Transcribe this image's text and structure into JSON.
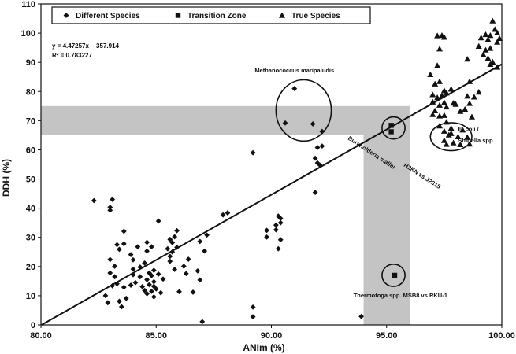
{
  "chart_data": {
    "type": "scatter",
    "xlabel": "ANIm (%)",
    "ylabel": "DDH (%)",
    "xlim": [
      80,
      100
    ],
    "ylim": [
      0,
      110
    ],
    "x_ticks": [
      "80.00",
      "85.00",
      "90.00",
      "95.00",
      "100.00"
    ],
    "y_ticks": [
      "0",
      "10",
      "20",
      "30",
      "40",
      "50",
      "60",
      "70",
      "80",
      "90",
      "100",
      "110"
    ],
    "legend_placement": "top",
    "equation": "y = 4.47257x − 357.914",
    "r_squared": "R² = 0.783227",
    "regression": {
      "slope": 4.47257,
      "intercept": -357.914
    },
    "shaded_bands": {
      "horizontal_ddh": [
        65,
        75
      ],
      "vertical_anim": [
        94,
        96
      ]
    },
    "annotations": [
      {
        "text": "Methanococcus maripaludis",
        "x": 91.0,
        "y": 86.5
      },
      {
        "text": "E. coli /",
        "x": 98.1,
        "y": 66.5
      },
      {
        "text": "Shigella spp.",
        "x": 98.1,
        "y": 62.5
      },
      {
        "text": "Thermotoga spp.  MSB8 vs RKU-1",
        "x": 95.6,
        "y": 9.5
      },
      {
        "text": "Burkholderia mallei",
        "x": 94.3,
        "y": 58.5,
        "rotate": 33
      },
      {
        "text": "H2KN vs J2315",
        "x": 96.5,
        "y": 50.5,
        "rotate": 33
      }
    ],
    "circles": [
      {
        "cx": 91.4,
        "cy": 73.5,
        "rx": 1.2,
        "ry": 10.5
      },
      {
        "cx": 95.3,
        "cy": 67.5,
        "rx": 0.5,
        "ry": 3.8
      },
      {
        "cx": 97.8,
        "cy": 64.5,
        "rx": 0.9,
        "ry": 4.8
      },
      {
        "cx": 95.3,
        "cy": 17.0,
        "rx": 0.5,
        "ry": 3.8
      }
    ],
    "series": [
      {
        "name": "Different Species",
        "marker": "diamond",
        "color": "#111111",
        "points": [
          [
            82.3,
            42.6
          ],
          [
            83.1,
            43.0
          ],
          [
            83.0,
            40.3
          ],
          [
            83.0,
            39.3
          ],
          [
            83.6,
            32.1
          ],
          [
            83.3,
            27.5
          ],
          [
            83.4,
            25.9
          ],
          [
            83.6,
            27.8
          ],
          [
            83.0,
            22.4
          ],
          [
            83.2,
            20.1
          ],
          [
            83.9,
            24.1
          ],
          [
            84.2,
            26.8
          ],
          [
            84.0,
            22.3
          ],
          [
            84.6,
            28.3
          ],
          [
            84.6,
            25.3
          ],
          [
            84.8,
            26.8
          ],
          [
            85.1,
            35.6
          ],
          [
            84.5,
            21.2
          ],
          [
            84.0,
            19.1
          ],
          [
            84.3,
            19.8
          ],
          [
            84.9,
            18.7
          ],
          [
            84.7,
            17.8
          ],
          [
            84.8,
            16.9
          ],
          [
            84.6,
            15.5
          ],
          [
            84.9,
            14.8
          ],
          [
            84.7,
            13.8
          ],
          [
            84.9,
            13.2
          ],
          [
            85.0,
            12.3
          ],
          [
            84.8,
            11.5
          ],
          [
            84.6,
            10.7
          ],
          [
            84.9,
            9.6
          ],
          [
            85.1,
            17.4
          ],
          [
            84.4,
            13.1
          ],
          [
            84.1,
            14.5
          ],
          [
            83.9,
            13.6
          ],
          [
            83.6,
            12.9
          ],
          [
            83.3,
            14.1
          ],
          [
            83.2,
            16.5
          ],
          [
            83.0,
            17.8
          ],
          [
            83.7,
            9.1
          ],
          [
            83.4,
            8.1
          ],
          [
            83.5,
            6.2
          ],
          [
            82.8,
            10.0
          ],
          [
            82.9,
            7.6
          ],
          [
            83.1,
            13.4
          ],
          [
            84.0,
            17.2
          ],
          [
            84.3,
            16.5
          ],
          [
            84.5,
            11.8
          ],
          [
            85.6,
            29.3
          ],
          [
            85.8,
            30.2
          ],
          [
            85.9,
            32.3
          ],
          [
            85.7,
            28.2
          ],
          [
            85.5,
            26.1
          ],
          [
            85.6,
            23.5
          ],
          [
            85.6,
            21.8
          ],
          [
            85.7,
            25.0
          ],
          [
            85.9,
            26.6
          ],
          [
            85.8,
            19.0
          ],
          [
            86.2,
            20.1
          ],
          [
            86.4,
            22.5
          ],
          [
            86.3,
            17.6
          ],
          [
            85.3,
            15.7
          ],
          [
            85.2,
            11.0
          ],
          [
            86.0,
            11.4
          ],
          [
            86.9,
            15.4
          ],
          [
            86.8,
            18.5
          ],
          [
            87.2,
            30.8
          ],
          [
            87.1,
            25.3
          ],
          [
            86.9,
            28.6
          ],
          [
            86.6,
            11.2
          ],
          [
            87.0,
            1.1
          ],
          [
            88.1,
            38.4
          ],
          [
            87.9,
            37.7
          ],
          [
            89.2,
            59.0
          ],
          [
            89.2,
            6.1
          ],
          [
            89.2,
            2.8
          ],
          [
            89.8,
            32.4
          ],
          [
            89.8,
            30.1
          ],
          [
            90.3,
            37.3
          ],
          [
            90.4,
            36.5
          ],
          [
            90.3,
            26.1
          ],
          [
            90.4,
            29.2
          ],
          [
            90.4,
            35.0
          ],
          [
            90.2,
            32.6
          ],
          [
            90.2,
            34.2
          ],
          [
            91.0,
            81.0
          ],
          [
            90.6,
            69.2
          ],
          [
            91.8,
            68.9
          ],
          [
            91.9,
            57.1
          ],
          [
            92.0,
            55.5
          ],
          [
            92.1,
            54.8
          ],
          [
            92.2,
            66.3
          ],
          [
            91.9,
            45.4
          ],
          [
            92.0,
            60.8
          ],
          [
            92.2,
            61.3
          ],
          [
            93.9,
            2.9
          ]
        ]
      },
      {
        "name": "Transition Zone",
        "marker": "square",
        "color": "#111111",
        "points": [
          [
            95.2,
            68.4
          ],
          [
            95.2,
            66.2
          ],
          [
            95.35,
            17.0
          ]
        ]
      },
      {
        "name": "True Species",
        "marker": "triangle",
        "color": "#111111",
        "points": [
          [
            96.9,
            85.8
          ],
          [
            97.0,
            76.4
          ],
          [
            97.0,
            72.1
          ],
          [
            97.2,
            99.1
          ],
          [
            97.4,
            99.2
          ],
          [
            97.5,
            98.6
          ],
          [
            97.3,
            94.6
          ],
          [
            97.2,
            88.9
          ],
          [
            97.3,
            83.4
          ],
          [
            97.1,
            82.6
          ],
          [
            97.5,
            80.3
          ],
          [
            97.6,
            79.5
          ],
          [
            97.2,
            77.9
          ],
          [
            97.4,
            78.6
          ],
          [
            97.5,
            76.2
          ],
          [
            97.6,
            74.7
          ],
          [
            97.1,
            73.4
          ],
          [
            97.3,
            71.6
          ],
          [
            97.5,
            71.8
          ],
          [
            97.6,
            69.5
          ],
          [
            97.8,
            67.4
          ],
          [
            97.8,
            65.6
          ],
          [
            97.9,
            76.0
          ],
          [
            98.0,
            75.6
          ],
          [
            98.2,
            73.2
          ],
          [
            98.3,
            66.8
          ],
          [
            98.1,
            64.5
          ],
          [
            97.9,
            62.4
          ],
          [
            98.2,
            61.8
          ],
          [
            97.5,
            63.2
          ],
          [
            97.7,
            65.1
          ],
          [
            97.6,
            61.9
          ],
          [
            98.5,
            64.3
          ],
          [
            98.6,
            62.0
          ],
          [
            98.5,
            78.4
          ],
          [
            98.6,
            75.9
          ],
          [
            98.8,
            78.1
          ],
          [
            99.0,
            79.8
          ],
          [
            98.5,
            91.1
          ],
          [
            98.6,
            83.4
          ],
          [
            99.0,
            95.5
          ],
          [
            99.1,
            98.4
          ],
          [
            99.3,
            99.5
          ],
          [
            99.4,
            97.8
          ],
          [
            99.5,
            99.2
          ],
          [
            99.6,
            104.2
          ],
          [
            99.7,
            101.3
          ],
          [
            99.8,
            100.1
          ],
          [
            99.9,
            98.2
          ],
          [
            99.8,
            96.9
          ],
          [
            99.5,
            94.8
          ],
          [
            99.3,
            94.2
          ],
          [
            99.2,
            92.6
          ],
          [
            99.4,
            91.4
          ],
          [
            99.6,
            90.1
          ],
          [
            99.5,
            89.3
          ],
          [
            99.8,
            88.3
          ],
          [
            97.0,
            78.9
          ],
          [
            97.3,
            75.3
          ],
          [
            97.8,
            80.8
          ],
          [
            98.4,
            73.9
          ],
          [
            98.7,
            71.3
          ],
          [
            97.3,
            68.2
          ],
          [
            97.5,
            66.4
          ]
        ]
      }
    ]
  }
}
